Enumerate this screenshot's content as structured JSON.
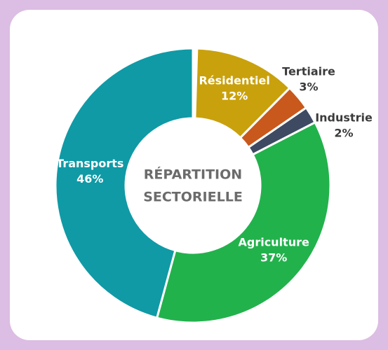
{
  "chart_data": {
    "type": "donut",
    "center_label": [
      "RÉPARTITION",
      "SECTORIELLE"
    ],
    "categories": [
      "Résidentiel",
      "Tertiaire",
      "Industrie",
      "Agriculture",
      "Transports"
    ],
    "values": [
      12,
      3,
      2,
      37,
      46
    ],
    "value_labels": [
      "12%",
      "3%",
      "2%",
      "37%",
      "46%"
    ],
    "colors": [
      "#c9a10c",
      "#c9581c",
      "#3d4a62",
      "#22b24c",
      "#0f9aa6"
    ]
  }
}
